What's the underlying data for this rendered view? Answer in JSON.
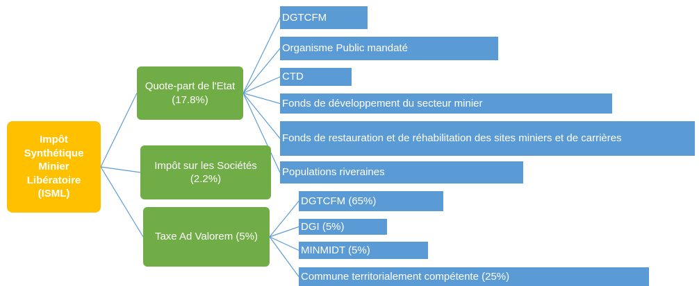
{
  "root": {
    "label": "Impôt Synthétique Minier Libératoire (ISML)"
  },
  "branches": [
    {
      "label": "Quote-part de l'Etat (17.8%)",
      "children": [
        "DGTCFM",
        "Organisme Public mandaté",
        "CTD",
        "Fonds de développement du secteur minier",
        "Fonds de restauration et de réhabilitation des sites miniers et de carrières",
        "Populations riveraines"
      ]
    },
    {
      "label": "Impôt sur les Sociétés (2.2%)",
      "children": []
    },
    {
      "label": "Taxe Ad Valorem (5%)",
      "children": [
        "DGTCFM (65%)",
        "DGI (5%)",
        "MINMIDT (5%)",
        "Commune territorialement compétente (25%)"
      ]
    }
  ]
}
